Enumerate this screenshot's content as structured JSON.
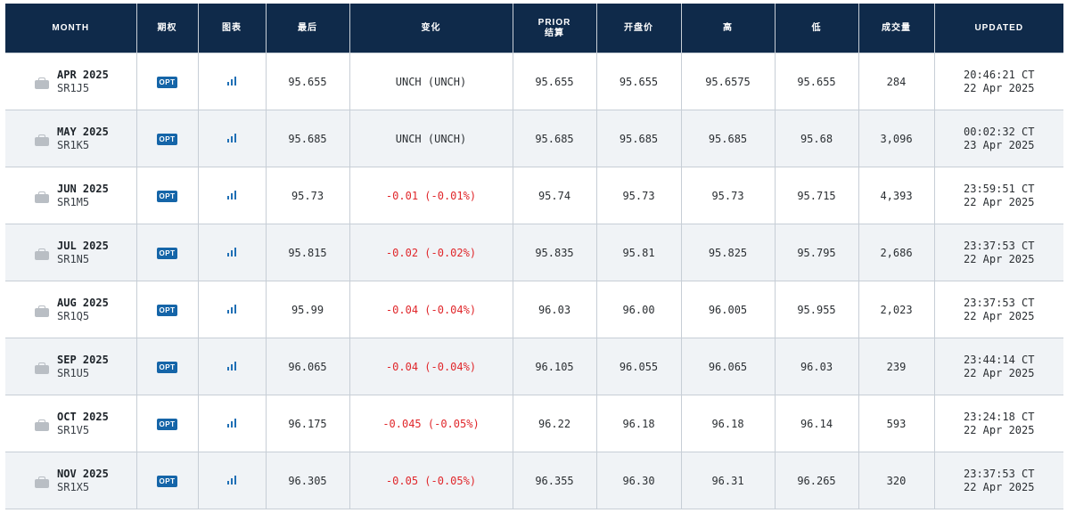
{
  "headers": {
    "month": "MONTH",
    "options": "期权",
    "chart": "图表",
    "last": "最后",
    "change": "变化",
    "prior_line1": "PRIOR",
    "prior_line2": "结算",
    "open": "开盘价",
    "high": "高",
    "low": "低",
    "volume": "成交量",
    "updated": "UPDATED"
  },
  "opt_label": "OPT",
  "icons": {
    "month": "briefcase-icon",
    "chart": "bar-chart-icon"
  },
  "colors": {
    "header_bg": "#0f2a4a",
    "negative": "#e0272b",
    "opt_badge": "#1565a8",
    "chart_icon": "#1f6fb5"
  },
  "rows": [
    {
      "month": "APR 2025",
      "code": "SR1J5",
      "last": "95.655",
      "change": "UNCH (UNCH)",
      "change_negative": false,
      "prior": "95.655",
      "open": "95.655",
      "high": "95.6575",
      "low": "95.655",
      "volume": "284",
      "time": "20:46:21 CT",
      "date": "22 Apr 2025"
    },
    {
      "month": "MAY 2025",
      "code": "SR1K5",
      "last": "95.685",
      "change": "UNCH (UNCH)",
      "change_negative": false,
      "prior": "95.685",
      "open": "95.685",
      "high": "95.685",
      "low": "95.68",
      "volume": "3,096",
      "time": "00:02:32 CT",
      "date": "23 Apr 2025"
    },
    {
      "month": "JUN 2025",
      "code": "SR1M5",
      "last": "95.73",
      "change": "-0.01 (-0.01%)",
      "change_negative": true,
      "prior": "95.74",
      "open": "95.73",
      "high": "95.73",
      "low": "95.715",
      "volume": "4,393",
      "time": "23:59:51 CT",
      "date": "22 Apr 2025"
    },
    {
      "month": "JUL 2025",
      "code": "SR1N5",
      "last": "95.815",
      "change": "-0.02 (-0.02%)",
      "change_negative": true,
      "prior": "95.835",
      "open": "95.81",
      "high": "95.825",
      "low": "95.795",
      "volume": "2,686",
      "time": "23:37:53 CT",
      "date": "22 Apr 2025"
    },
    {
      "month": "AUG 2025",
      "code": "SR1Q5",
      "last": "95.99",
      "change": "-0.04 (-0.04%)",
      "change_negative": true,
      "prior": "96.03",
      "open": "96.00",
      "high": "96.005",
      "low": "95.955",
      "volume": "2,023",
      "time": "23:37:53 CT",
      "date": "22 Apr 2025"
    },
    {
      "month": "SEP 2025",
      "code": "SR1U5",
      "last": "96.065",
      "change": "-0.04 (-0.04%)",
      "change_negative": true,
      "prior": "96.105",
      "open": "96.055",
      "high": "96.065",
      "low": "96.03",
      "volume": "239",
      "time": "23:44:14 CT",
      "date": "22 Apr 2025"
    },
    {
      "month": "OCT 2025",
      "code": "SR1V5",
      "last": "96.175",
      "change": "-0.045 (-0.05%)",
      "change_negative": true,
      "prior": "96.22",
      "open": "96.18",
      "high": "96.18",
      "low": "96.14",
      "volume": "593",
      "time": "23:24:18 CT",
      "date": "22 Apr 2025"
    },
    {
      "month": "NOV 2025",
      "code": "SR1X5",
      "last": "96.305",
      "change": "-0.05 (-0.05%)",
      "change_negative": true,
      "prior": "96.355",
      "open": "96.30",
      "high": "96.31",
      "low": "96.265",
      "volume": "320",
      "time": "23:37:53 CT",
      "date": "22 Apr 2025"
    }
  ]
}
